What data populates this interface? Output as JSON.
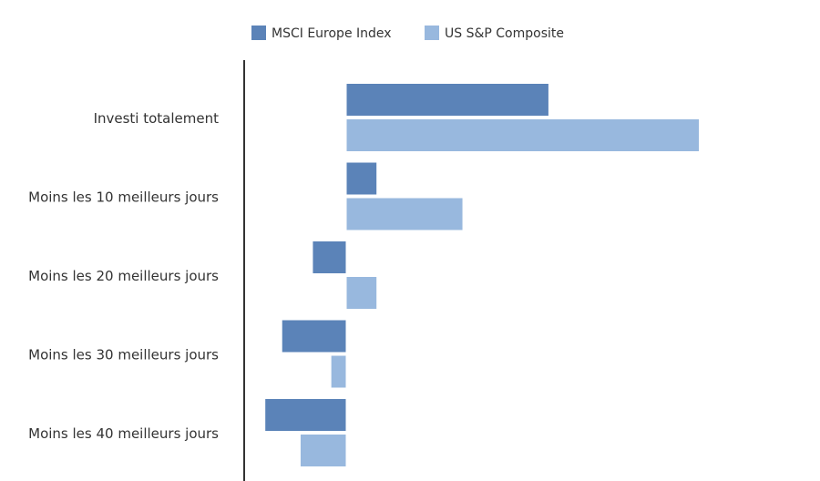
{
  "chart_data": {
    "type": "bar",
    "orientation": "horizontal",
    "categories": [
      "Investi totalement",
      "Moins les 10 meilleurs jours",
      "Moins les 20 meilleurs jours",
      "Moins les 30 meilleurs jours",
      "Moins les 40 meilleurs jours"
    ],
    "series": [
      {
        "name": "MSCI Europe Index",
        "color": "#5b83b8",
        "values": [
          6.6,
          1.0,
          -1.1,
          -2.1,
          -2.65
        ]
      },
      {
        "name": "US S&P Composite",
        "color": "#98b8de",
        "values": [
          11.5,
          3.8,
          1.0,
          -0.5,
          -1.5
        ]
      }
    ],
    "xlim": [
      -3.3,
      15.5
    ],
    "grid": false,
    "legend_position": "top",
    "title": "",
    "xlabel": "",
    "ylabel": ""
  }
}
